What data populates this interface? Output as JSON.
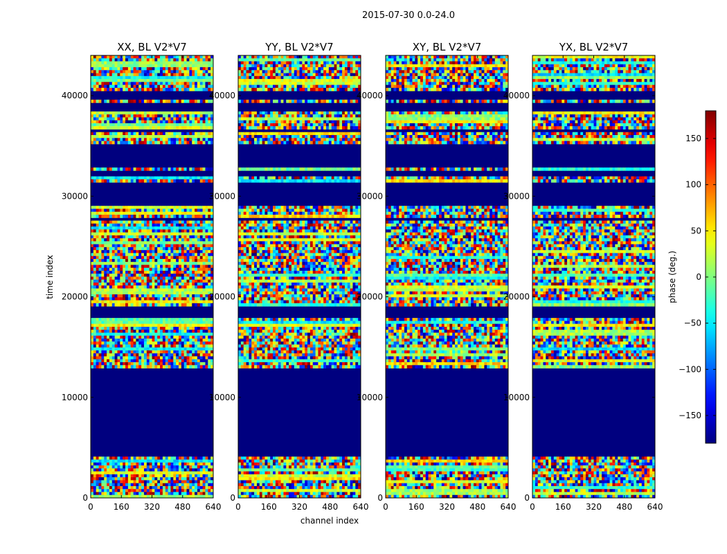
{
  "figure": {
    "suptitle": "2015-07-30 0.0-24.0"
  },
  "chart_data": {
    "type": "heatmap",
    "panels": [
      {
        "title": "XX, BL V2*V7"
      },
      {
        "title": "YY, BL V2*V7"
      },
      {
        "title": "XY, BL V2*V7"
      },
      {
        "title": "YX, BL V2*V7"
      }
    ],
    "xlabel": "channel index",
    "ylabel": "time index",
    "xticks": [
      0,
      160,
      320,
      480,
      640
    ],
    "yticks": [
      0,
      10000,
      20000,
      30000,
      40000
    ],
    "xlim": [
      0,
      640
    ],
    "ylim": [
      0,
      44000
    ],
    "colorbar": {
      "label": "phase (deg.)",
      "ticks": [
        150,
        100,
        50,
        0,
        -50,
        -100,
        -150
      ],
      "tick_labels": [
        "150",
        "100",
        "50",
        "0",
        "−50",
        "−100",
        "−150"
      ],
      "range": [
        -180,
        180
      ],
      "colormap": "jet"
    },
    "flagged_time_ranges": [
      [
        4000,
        13000
      ],
      [
        17800,
        19000
      ],
      [
        27500,
        28000
      ],
      [
        29000,
        31500
      ],
      [
        32000,
        32500
      ],
      [
        33000,
        35200
      ],
      [
        36400,
        36800
      ],
      [
        38500,
        39200
      ],
      [
        39600,
        40500
      ]
    ],
    "masked_value": -180
  },
  "colors": {
    "masked": "#00007f",
    "frame": "#000000"
  }
}
